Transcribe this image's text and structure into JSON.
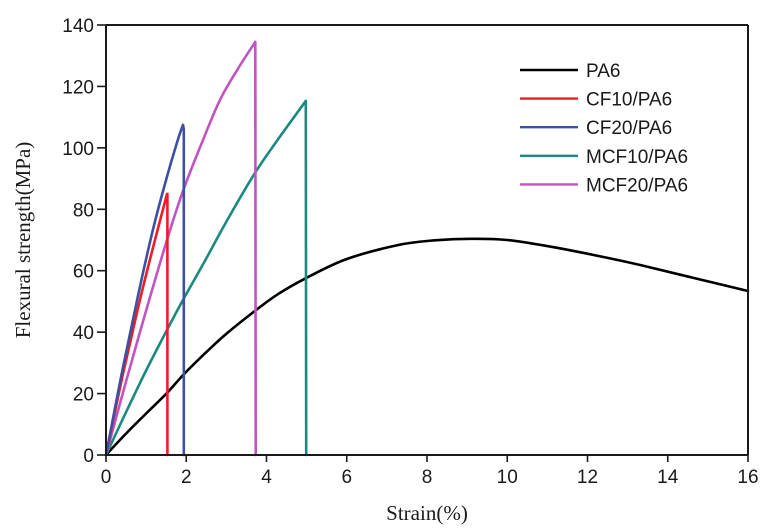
{
  "chart_data": {
    "type": "line",
    "title": "",
    "xlabel": "Strain(%)",
    "ylabel": "Flexural strength(MPa)",
    "xlim": [
      0,
      16
    ],
    "ylim": [
      0,
      140
    ],
    "xticks": [
      0,
      2,
      4,
      6,
      8,
      10,
      12,
      14,
      16
    ],
    "yticks": [
      0,
      20,
      40,
      60,
      80,
      100,
      120,
      140
    ],
    "xtick_labels": [
      "0",
      "2",
      "4",
      "6",
      "8",
      "10",
      "12",
      "14",
      "16"
    ],
    "ytick_labels": [
      "0",
      "20",
      "40",
      "60",
      "80",
      "100",
      "120",
      "140"
    ],
    "grid": false,
    "legend_position": "top-right",
    "series": [
      {
        "name": "PA6",
        "color": "#000000",
        "x": [
          0,
          0.5,
          1.0,
          1.52,
          1.92,
          2.5,
          3.0,
          3.72,
          4.3,
          5.0,
          6.0,
          7.3,
          8.2,
          9.1,
          10.0,
          11.1,
          12.2,
          13.3,
          14.6,
          16.0
        ],
        "y": [
          0,
          7,
          13.5,
          20.2,
          26,
          33.5,
          39.5,
          47,
          52.5,
          57.7,
          63.8,
          68.4,
          69.9,
          70.4,
          70.0,
          67.8,
          65.0,
          61.9,
          57.8,
          53.4
        ]
      },
      {
        "name": "CF10/PA6",
        "color": "#ee1c24",
        "x": [
          0,
          0.4,
          0.8,
          1.2,
          1.52,
          1.53,
          1.53
        ],
        "y": [
          0,
          25,
          48,
          69,
          85,
          85,
          0
        ]
      },
      {
        "name": "CF20/PA6",
        "color": "#3e4fa4",
        "x": [
          0,
          0.4,
          0.8,
          1.2,
          1.55,
          1.8,
          1.92,
          1.94,
          1.94
        ],
        "y": [
          0,
          27,
          52,
          75,
          92,
          103,
          107.5,
          106,
          0
        ]
      },
      {
        "name": "MCF10/PA6",
        "color": "#1a8a80",
        "x": [
          0,
          0.5,
          1.0,
          1.52,
          1.92,
          2.5,
          3.0,
          3.72,
          4.3,
          4.98,
          4.99
        ],
        "y": [
          0,
          14,
          27.5,
          40.7,
          50.5,
          64,
          76,
          92,
          103,
          115.3,
          0
        ]
      },
      {
        "name": "MCF20/PA6",
        "color": "#c154c1",
        "x": [
          0,
          0.5,
          1.0,
          1.52,
          1.92,
          2.4,
          2.84,
          3.3,
          3.72,
          3.73
        ],
        "y": [
          0,
          24,
          47,
          70,
          86,
          102,
          115.6,
          126,
          134.5,
          0
        ]
      }
    ]
  }
}
